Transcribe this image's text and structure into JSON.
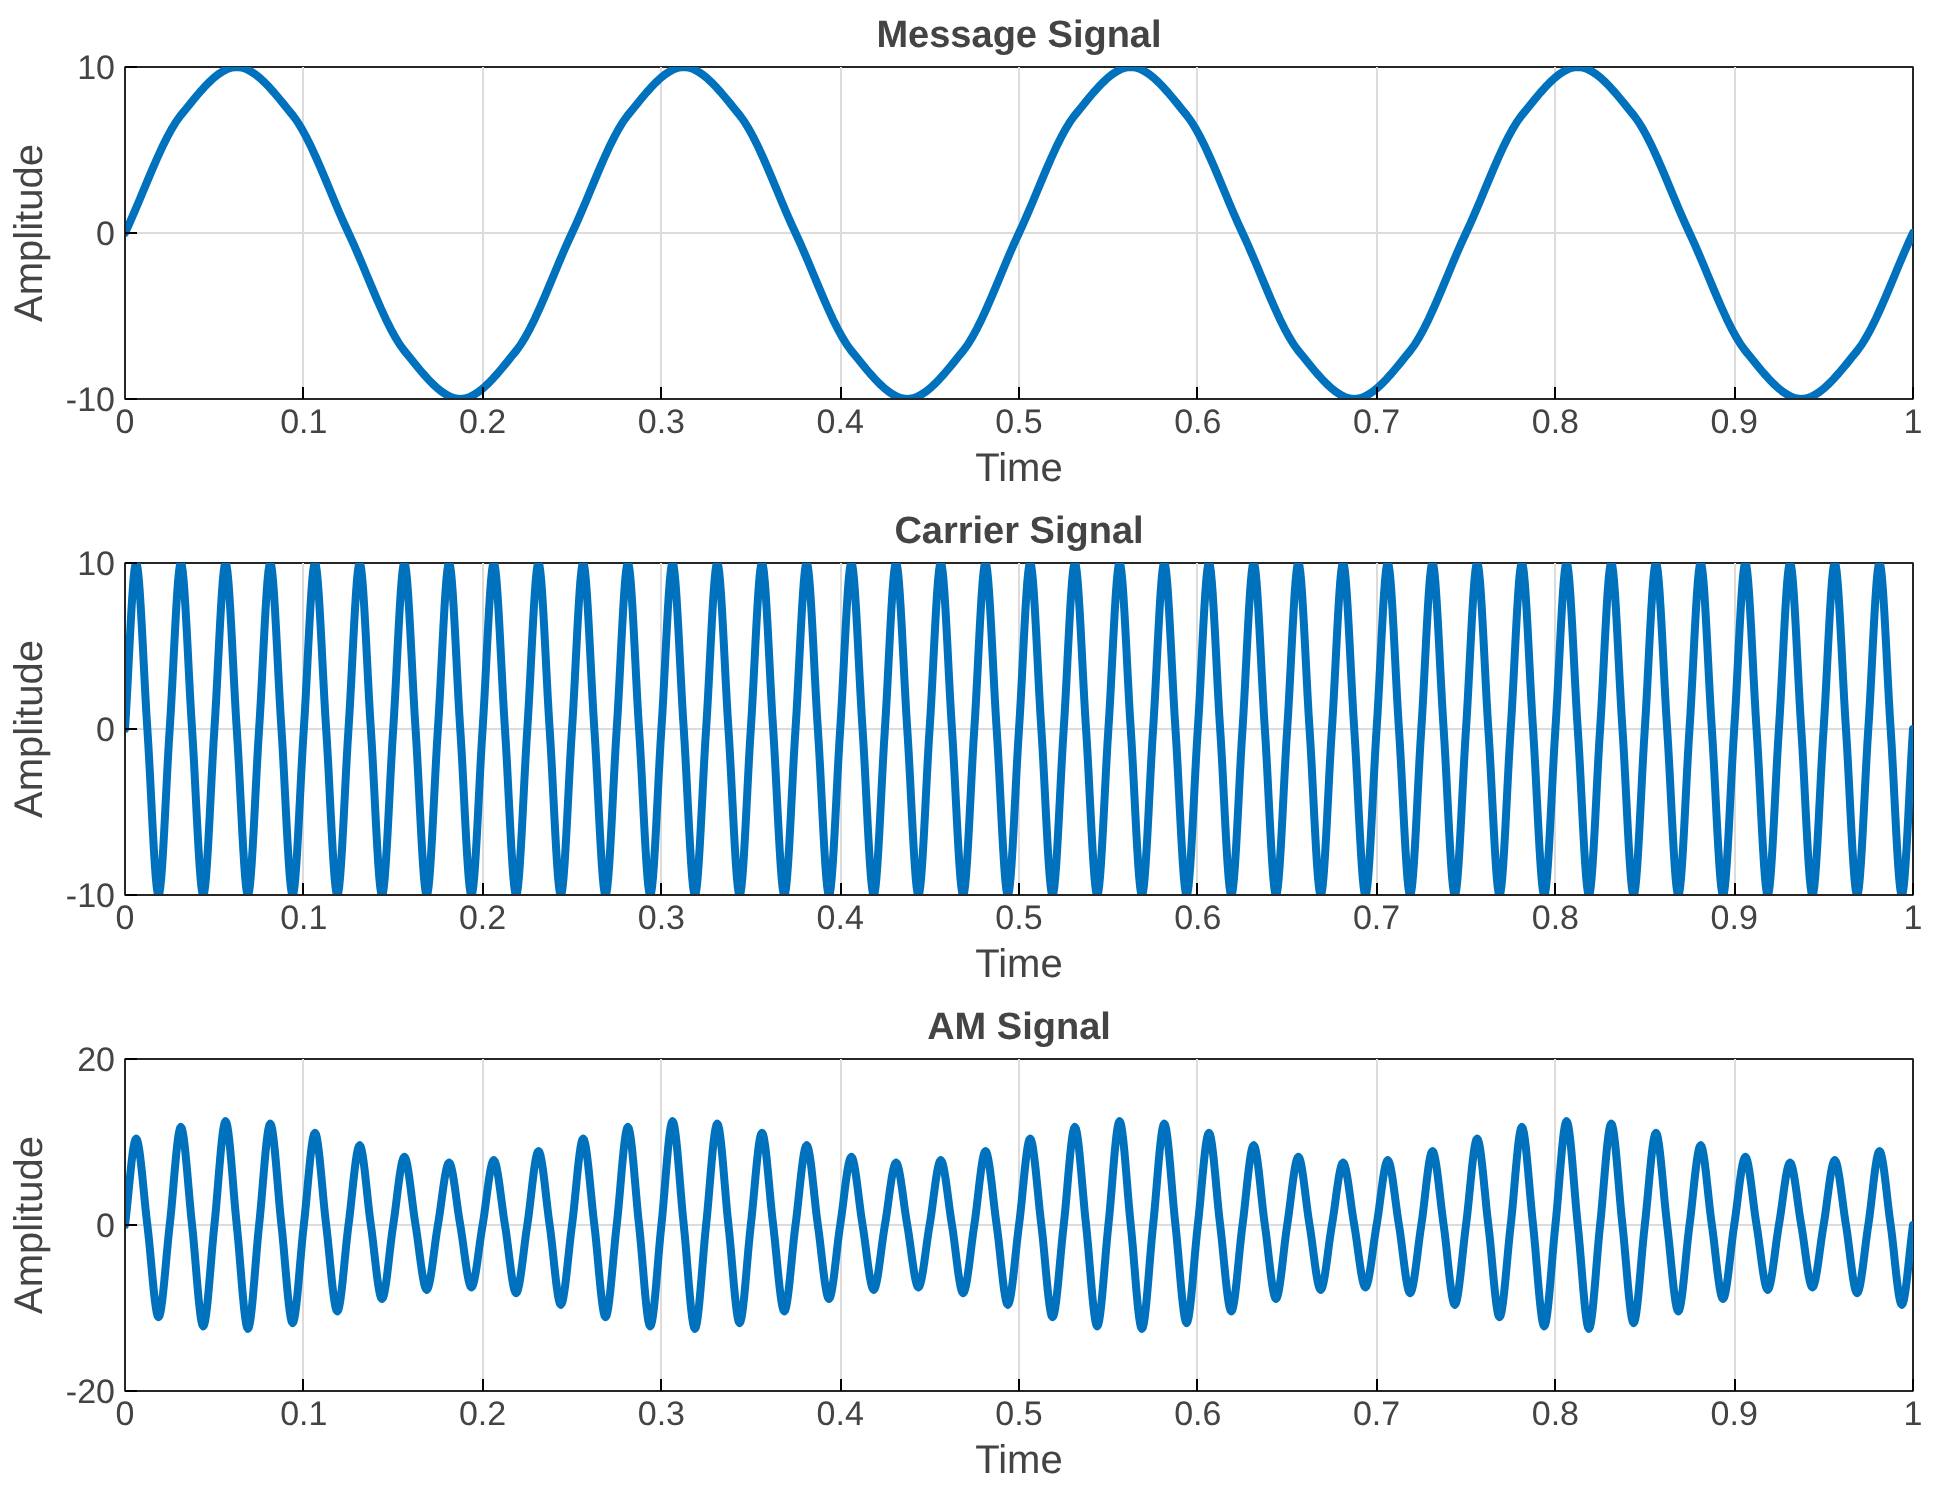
{
  "chart_data": [
    {
      "type": "line",
      "title": "Message Signal",
      "xlabel": "Time",
      "ylabel": "Amplitude",
      "xlim": [
        0,
        1
      ],
      "ylim": [
        -10,
        10
      ],
      "xticks": [
        0,
        0.1,
        0.2,
        0.3,
        0.4,
        0.5,
        0.6,
        0.7,
        0.8,
        0.9,
        1
      ],
      "yticks": [
        -10,
        0,
        10
      ],
      "grid": true,
      "x": [
        0,
        0.03125,
        0.0625,
        0.09375,
        0.125,
        0.15625,
        0.1875,
        0.21875,
        0.25,
        0.28125,
        0.3125,
        0.34375,
        0.375,
        0.40625,
        0.4375,
        0.46875,
        0.5,
        0.53125,
        0.5625,
        0.59375,
        0.625,
        0.65625,
        0.6875,
        0.71875,
        0.75,
        0.78125,
        0.8125,
        0.84375,
        0.875,
        0.90625,
        0.9375,
        0.96875,
        1
      ],
      "series": [
        {
          "color": "#0072bd",
          "values": [
            0,
            7.1,
            10,
            7.1,
            0,
            -7.1,
            -10,
            -7.1,
            0,
            7.1,
            10,
            7.1,
            0,
            -7.1,
            -10,
            -7.1,
            0,
            7.1,
            10,
            7.1,
            0,
            -7.1,
            -10,
            -7.1,
            0,
            7.1,
            10,
            7.1,
            0,
            -7.1,
            -10,
            -7.1,
            0
          ]
        }
      ]
    },
    {
      "type": "line",
      "title": "Carrier Signal",
      "xlabel": "Time",
      "ylabel": "Amplitude",
      "xlim": [
        0,
        1
      ],
      "ylim": [
        -10,
        10
      ],
      "xticks": [
        0,
        0.1,
        0.2,
        0.3,
        0.4,
        0.5,
        0.6,
        0.7,
        0.8,
        0.9,
        1
      ],
      "yticks": [
        -10,
        0,
        10
      ],
      "grid": true,
      "x": [
        0,
        0.00625,
        0.0125,
        0.01875,
        0.025,
        0.03125,
        0.0375,
        0.04375,
        0.05,
        0.05625,
        0.0625,
        0.06875,
        0.075,
        0.08125,
        0.0875,
        0.09375,
        0.1,
        0.10625,
        0.1125,
        0.11875,
        0.125,
        0.13125,
        0.1375,
        0.14375,
        0.15,
        0.15625,
        0.1625,
        0.16875,
        0.175,
        0.18125,
        0.1875,
        0.19375,
        0.2,
        0.20625,
        0.2125,
        0.21875,
        0.225,
        0.23125,
        0.2375,
        0.24375,
        0.25,
        0.25625,
        0.2625,
        0.26875,
        0.275,
        0.28125,
        0.2875,
        0.29375,
        0.3,
        0.30625,
        0.3125,
        0.31875,
        0.325,
        0.33125,
        0.3375,
        0.34375,
        0.35,
        0.35625,
        0.3625,
        0.36875,
        0.375,
        0.38125,
        0.3875,
        0.39375,
        0.4,
        0.40625,
        0.4125,
        0.41875,
        0.425,
        0.43125,
        0.4375,
        0.44375,
        0.45,
        0.45625,
        0.4625,
        0.46875,
        0.475,
        0.48125,
        0.4875,
        0.49375,
        0.5,
        0.50625,
        0.5125,
        0.51875,
        0.525,
        0.53125,
        0.5375,
        0.54375,
        0.55,
        0.55625,
        0.5625,
        0.56875,
        0.575,
        0.58125,
        0.5875,
        0.59375,
        0.6,
        0.60625,
        0.6125,
        0.61875,
        0.625,
        0.63125,
        0.6375,
        0.64375,
        0.65,
        0.65625,
        0.6625,
        0.66875,
        0.675,
        0.68125,
        0.6875,
        0.69375,
        0.7,
        0.70625,
        0.7125,
        0.71875,
        0.725,
        0.73125,
        0.7375,
        0.74375,
        0.75,
        0.75625,
        0.7625,
        0.76875,
        0.775,
        0.78125,
        0.7875,
        0.79375,
        0.8,
        0.80625,
        0.8125,
        0.81875,
        0.825,
        0.83125,
        0.8375,
        0.84375,
        0.85,
        0.85625,
        0.8625,
        0.86875,
        0.875,
        0.88125,
        0.8875,
        0.89375,
        0.9,
        0.90625,
        0.9125,
        0.91875,
        0.925,
        0.93125,
        0.9375,
        0.94375,
        0.95,
        0.95625,
        0.9625,
        0.96875,
        0.975,
        0.98125,
        0.9875,
        0.99375,
        1
      ],
      "series": [
        {
          "color": "#0072bd",
          "values": [
            0,
            10,
            0,
            -10,
            0,
            10,
            0,
            -10,
            0,
            10,
            0,
            -10,
            0,
            10,
            0,
            -10,
            0,
            10,
            0,
            -10,
            0,
            10,
            0,
            -10,
            0,
            10,
            0,
            -10,
            0,
            10,
            0,
            -10,
            0,
            10,
            0,
            -10,
            0,
            10,
            0,
            -10,
            0,
            10,
            0,
            -10,
            0,
            10,
            0,
            -10,
            0,
            10,
            0,
            -10,
            0,
            10,
            0,
            -10,
            0,
            10,
            0,
            -10,
            0,
            10,
            0,
            -10,
            0,
            10,
            0,
            -10,
            0,
            10,
            0,
            -10,
            0,
            10,
            0,
            -10,
            0,
            10,
            0,
            -10,
            0,
            10,
            0,
            -10,
            0,
            10,
            0,
            -10,
            0,
            10,
            0,
            -10,
            0,
            10,
            0,
            -10,
            0,
            10,
            0,
            -10,
            0,
            10,
            0,
            -10,
            0,
            10,
            0,
            -10,
            0,
            10,
            0,
            -10,
            0,
            10,
            0,
            -10,
            0,
            10,
            0,
            -10,
            0,
            10,
            0,
            -10,
            0,
            10,
            0,
            -10,
            0,
            10,
            0,
            -10,
            0,
            10,
            0,
            -10,
            0,
            10,
            0,
            -10,
            0,
            10,
            0,
            -10,
            0,
            10,
            0,
            -10,
            0,
            10,
            0,
            -10,
            0,
            10,
            0,
            -10,
            0,
            10,
            0,
            -10,
            0
          ]
        }
      ]
    },
    {
      "type": "line",
      "title": "AM Signal",
      "xlabel": "Time",
      "ylabel": "Amplitude",
      "xlim": [
        0,
        1
      ],
      "ylim": [
        -20,
        20
      ],
      "xticks": [
        0,
        0.1,
        0.2,
        0.3,
        0.4,
        0.5,
        0.6,
        0.7,
        0.8,
        0.9,
        1
      ],
      "yticks": [
        -20,
        0,
        20
      ],
      "grid": true,
      "x": [
        0,
        0.00625,
        0.0125,
        0.01875,
        0.025,
        0.03125,
        0.0375,
        0.04375,
        0.05,
        0.05625,
        0.0625,
        0.06875,
        0.075,
        0.08125,
        0.0875,
        0.09375,
        0.1,
        0.10625,
        0.1125,
        0.11875,
        0.125,
        0.13125,
        0.1375,
        0.14375,
        0.15,
        0.15625,
        0.1625,
        0.16875,
        0.175,
        0.18125,
        0.1875,
        0.19375,
        0.2,
        0.20625,
        0.2125,
        0.21875,
        0.225,
        0.23125,
        0.2375,
        0.24375,
        0.25,
        0.25625,
        0.2625,
        0.26875,
        0.275,
        0.28125,
        0.2875,
        0.29375,
        0.3,
        0.30625,
        0.3125,
        0.31875,
        0.325,
        0.33125,
        0.3375,
        0.34375,
        0.35,
        0.35625,
        0.3625,
        0.36875,
        0.375,
        0.38125,
        0.3875,
        0.39375,
        0.4,
        0.40625,
        0.4125,
        0.41875,
        0.425,
        0.43125,
        0.4375,
        0.44375,
        0.45,
        0.45625,
        0.4625,
        0.46875,
        0.475,
        0.48125,
        0.4875,
        0.49375,
        0.5,
        0.50625,
        0.5125,
        0.51875,
        0.525,
        0.53125,
        0.5375,
        0.54375,
        0.55,
        0.55625,
        0.5625,
        0.56875,
        0.575,
        0.58125,
        0.5875,
        0.59375,
        0.6,
        0.60625,
        0.6125,
        0.61875,
        0.625,
        0.63125,
        0.6375,
        0.64375,
        0.65,
        0.65625,
        0.6625,
        0.66875,
        0.675,
        0.68125,
        0.6875,
        0.69375,
        0.7,
        0.70625,
        0.7125,
        0.71875,
        0.725,
        0.73125,
        0.7375,
        0.74375,
        0.75,
        0.75625,
        0.7625,
        0.76875,
        0.775,
        0.78125,
        0.7875,
        0.79375,
        0.8,
        0.80625,
        0.8125,
        0.81875,
        0.825,
        0.83125,
        0.8375,
        0.84375,
        0.85,
        0.85625,
        0.8625,
        0.86875,
        0.875,
        0.88125,
        0.8875,
        0.89375,
        0.9,
        0.90625,
        0.9125,
        0.91875,
        0.925,
        0.93125,
        0.9375,
        0.94375,
        0.95,
        0.95625,
        0.9625,
        0.96875,
        0.975,
        0.98125,
        0.9875,
        0.99375,
        1
      ],
      "series": [
        {
          "color": "#0072bd",
          "values": [
            0,
            10.4,
            0,
            -11.1,
            0,
            11.8,
            0,
            -12.2,
            0,
            12.5,
            0,
            -12.5,
            0,
            12.2,
            0,
            -11.8,
            0,
            11.1,
            0,
            -10.4,
            0,
            9.6,
            0,
            -8.9,
            0,
            8.2,
            0,
            -7.8,
            0,
            7.5,
            0,
            -7.5,
            0,
            7.8,
            0,
            -8.2,
            0,
            8.9,
            0,
            -9.6,
            0,
            10.4,
            0,
            -11.1,
            0,
            11.8,
            0,
            -12.2,
            0,
            12.5,
            0,
            -12.5,
            0,
            12.2,
            0,
            -11.8,
            0,
            11.1,
            0,
            -10.4,
            0,
            9.6,
            0,
            -8.9,
            0,
            8.2,
            0,
            -7.8,
            0,
            7.5,
            0,
            -7.5,
            0,
            7.8,
            0,
            -8.2,
            0,
            8.9,
            0,
            -9.6,
            0,
            10.4,
            0,
            -11.1,
            0,
            11.8,
            0,
            -12.2,
            0,
            12.5,
            0,
            -12.5,
            0,
            12.2,
            0,
            -11.8,
            0,
            11.1,
            0,
            -10.4,
            0,
            9.6,
            0,
            -8.9,
            0,
            8.2,
            0,
            -7.8,
            0,
            7.5,
            0,
            -7.5,
            0,
            7.8,
            0,
            -8.2,
            0,
            8.9,
            0,
            -9.6,
            0,
            10.4,
            0,
            -11.1,
            0,
            11.8,
            0,
            -12.2,
            0,
            12.5,
            0,
            -12.5,
            0,
            12.2,
            0,
            -11.8,
            0,
            11.1,
            0,
            -10.4,
            0,
            9.6,
            0,
            -8.9,
            0,
            8.2,
            0,
            -7.8,
            0,
            7.5,
            0,
            -7.5,
            0,
            7.8,
            0,
            -8.2,
            0,
            8.9,
            0,
            -9.6,
            0
          ]
        }
      ]
    }
  ]
}
